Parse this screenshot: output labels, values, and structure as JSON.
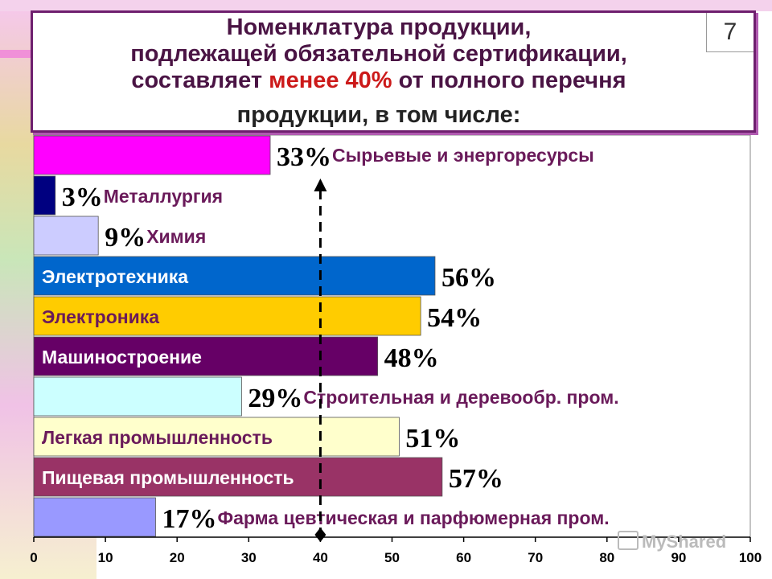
{
  "title": {
    "line1": "Номенклатура продукции,",
    "line2": "подлежащей обязательной сертификации,",
    "line3_pre": "составляет ",
    "line3_highlight": "менее 40%",
    "line3_post": " от полного перечня",
    "line4": "продукции,  в  том  числе:"
  },
  "page_number": "7",
  "watermark": "MyShared",
  "colors": {
    "frame": "#6e1f6e",
    "highlight": "#cc1a1a"
  },
  "chart_data": {
    "type": "bar",
    "orientation": "horizontal",
    "xlim": [
      0,
      100
    ],
    "x_ticks": [
      "0",
      "10",
      "20",
      "30",
      "40",
      "50",
      "60",
      "70",
      "80",
      "90",
      "100"
    ],
    "reference_line": {
      "x": 40,
      "style": "dashed",
      "marker": "arrow"
    },
    "bars": [
      {
        "category": "Сырьевые и энергоресурсы",
        "value": 33,
        "label": "33%",
        "color": "#ff00ff",
        "name_inside": false,
        "name_color": "#6a1a5a"
      },
      {
        "category": "Металлургия",
        "value": 3,
        "label": "3%",
        "color": "#000080",
        "name_inside": false,
        "name_color": "#6a1a5a"
      },
      {
        "category": "Химия",
        "value": 9,
        "label": "9%",
        "color": "#ccccff",
        "name_inside": false,
        "name_color": "#6a1a5a"
      },
      {
        "category": "Электротехника",
        "value": 56,
        "label": "56%",
        "color": "#0066cc",
        "name_inside": true,
        "name_color": "#ffffff"
      },
      {
        "category": "Электроника",
        "value": 54,
        "label": "54%",
        "color": "#ffcc00",
        "name_inside": true,
        "name_color": "#6a1a5a"
      },
      {
        "category": "Машиностроение",
        "value": 48,
        "label": "48%",
        "color": "#660066",
        "name_inside": true,
        "name_color": "#ffffff"
      },
      {
        "category": "Строительная и деревообр. пром.",
        "value": 29,
        "label": "29%",
        "color": "#ccffff",
        "name_inside": false,
        "name_color": "#6a1a5a"
      },
      {
        "category": "Легкая промышленность",
        "value": 51,
        "label": "51%",
        "color": "#ffffcc",
        "name_inside": true,
        "name_color": "#6a1a5a"
      },
      {
        "category": "Пищевая промышленность",
        "value": 57,
        "label": "57%",
        "color": "#993366",
        "name_inside": true,
        "name_color": "#ffffff"
      },
      {
        "category": "Фарма цевтическая и парфюмерная пром.",
        "value": 17,
        "label": "17%",
        "color": "#9999ff",
        "name_inside": false,
        "name_color": "#6a1a5a"
      }
    ]
  }
}
